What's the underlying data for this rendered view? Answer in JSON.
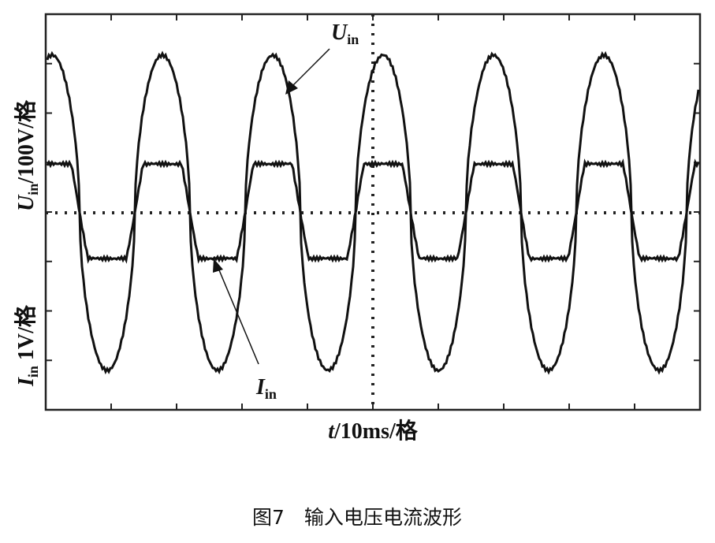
{
  "figure": {
    "y_label_voltage": {
      "symbol": "U",
      "subscript": "in",
      "scale": "/100V/格"
    },
    "y_label_current": {
      "symbol": "I",
      "subscript": "in",
      "scale": " 1V/格"
    },
    "x_label": {
      "symbol": "t",
      "scale": "/10ms/格"
    },
    "annotation_voltage": {
      "symbol": "U",
      "subscript": "in"
    },
    "annotation_current": {
      "symbol": "I",
      "subscript": "in"
    },
    "caption": "图7　输入电压电流波形"
  }
}
